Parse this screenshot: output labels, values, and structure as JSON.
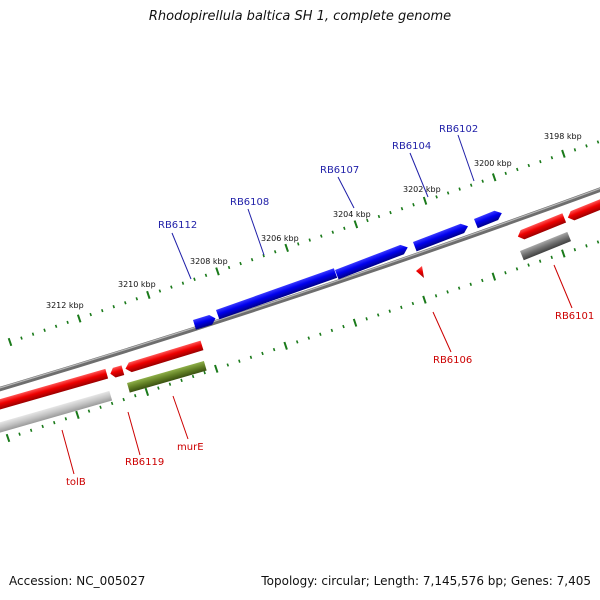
{
  "title": "Rhodopirellula baltica SH 1, complete genome",
  "footer": {
    "accession": "Accession: NC_005027",
    "summary": "Topology: circular; Length: 7,145,576 bp; Genes: 7,405"
  },
  "colors": {
    "forward_gene": "#0000dd",
    "reverse_gene": "#ee0000",
    "grey_gene": "#777777",
    "olive_gene": "#668822",
    "tick": "#1a7a1a",
    "forward_label": "#1f1fa8",
    "reverse_label": "#cc0000",
    "backbone": "#808080"
  },
  "ticks": [
    "3212 kbp",
    "3210 kbp",
    "3208 kbp",
    "3206 kbp",
    "3204 kbp",
    "3202 kbp",
    "3200 kbp",
    "3198 kbp"
  ],
  "genes": [
    {
      "id": "RB6112",
      "label": "RB6112",
      "strand": "forward"
    },
    {
      "id": "RB6108",
      "label": "RB6108",
      "strand": "forward"
    },
    {
      "id": "RB6107",
      "label": "RB6107",
      "strand": "forward"
    },
    {
      "id": "RB6104",
      "label": "RB6104",
      "strand": "forward"
    },
    {
      "id": "RB6102",
      "label": "RB6102",
      "strand": "forward"
    },
    {
      "id": "RB6106",
      "label": "RB6106",
      "strand": "reverse"
    },
    {
      "id": "RB6101",
      "label": "RB6101",
      "strand": "reverse"
    },
    {
      "id": "RB6119",
      "label": "RB6119",
      "strand": "reverse"
    },
    {
      "id": "murE",
      "label": "murE",
      "strand": "reverse"
    },
    {
      "id": "tolB",
      "label": "tolB",
      "strand": "reverse"
    }
  ]
}
